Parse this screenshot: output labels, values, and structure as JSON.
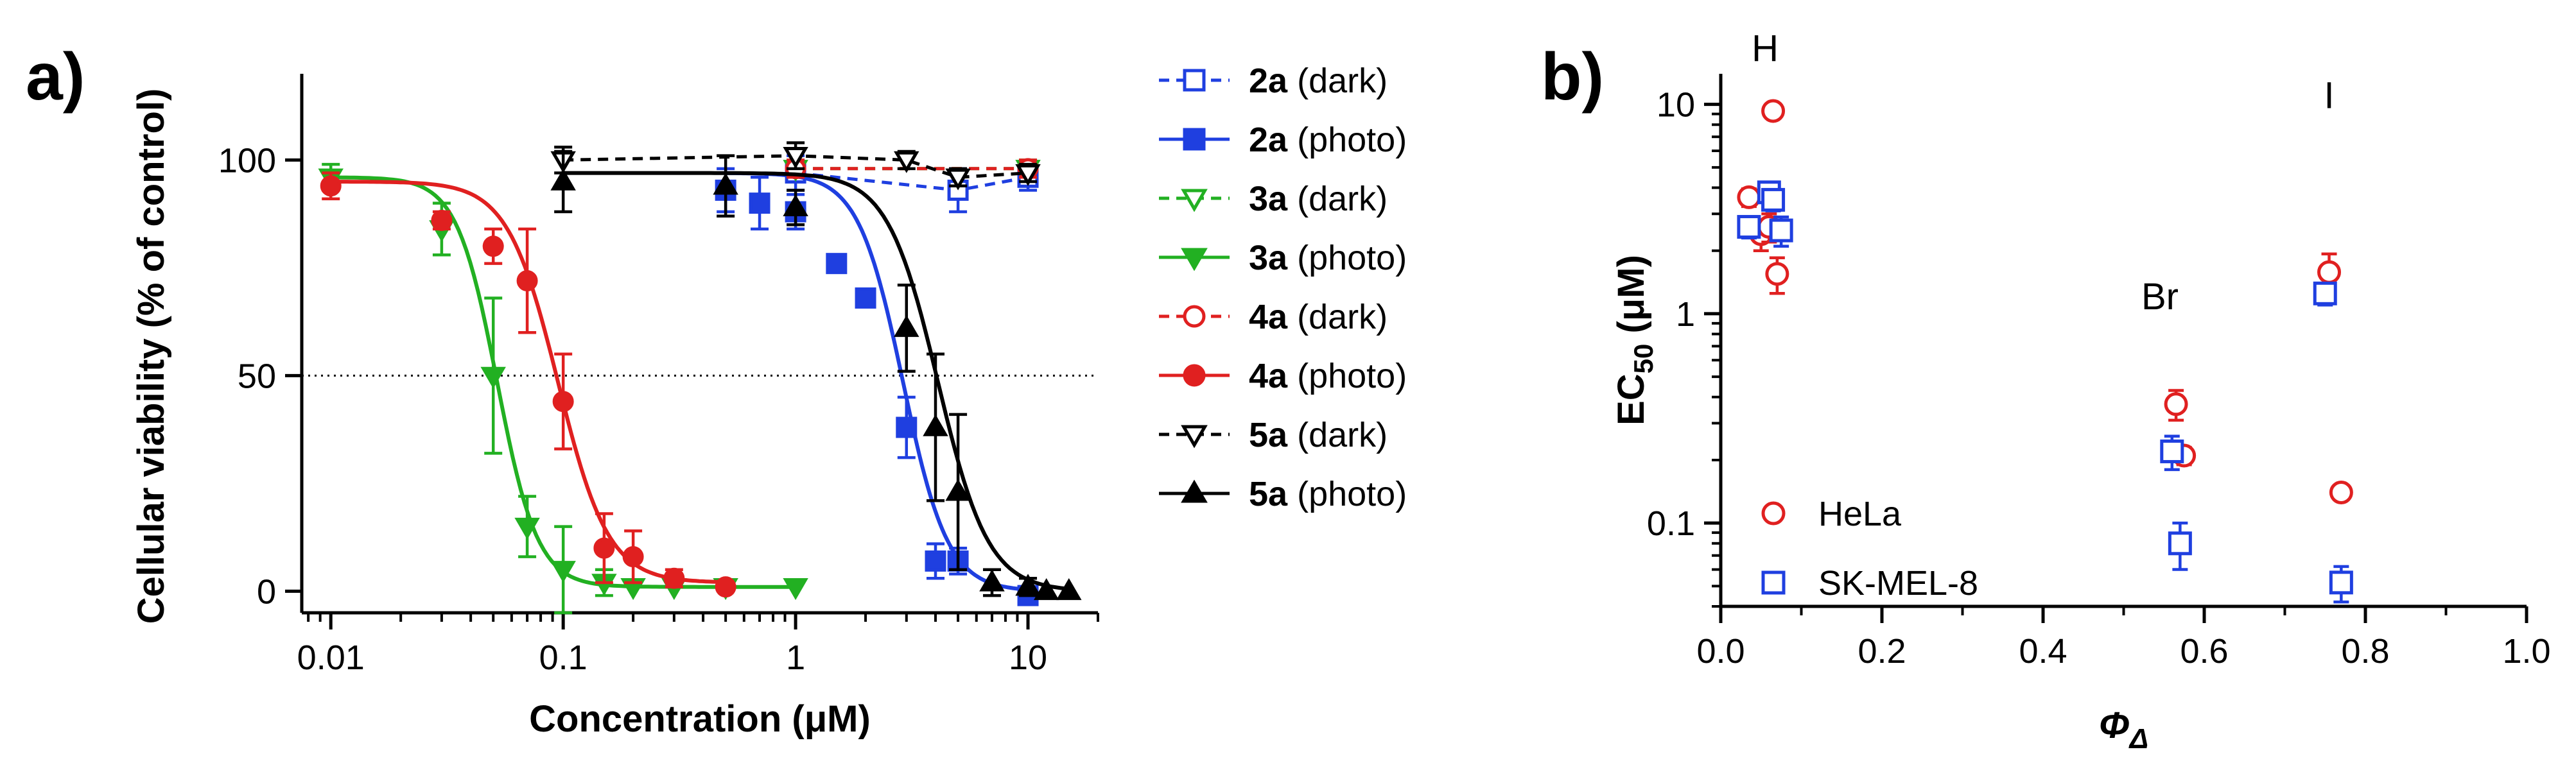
{
  "chart_data": [
    {
      "panel": "a)",
      "type": "scatter",
      "xlabel": "Concentration  (μM)",
      "ylabel": "Cellular viability  (% of control)",
      "xscale": "log",
      "xlim": [
        0.0075,
        20
      ],
      "ylim": [
        -5,
        120
      ],
      "xticks": [
        {
          "v": 0.01,
          "label": "0.01"
        },
        {
          "v": 0.1,
          "label": "0.1"
        },
        {
          "v": 1,
          "label": "1"
        },
        {
          "v": 10,
          "label": "10"
        }
      ],
      "yticks": [
        {
          "v": 0,
          "label": "0"
        },
        {
          "v": 50,
          "label": "50"
        },
        {
          "v": 100,
          "label": "100"
        }
      ],
      "reference_line": {
        "y": 50,
        "style": "dotted"
      },
      "legend_position": "right",
      "series": [
        {
          "name": "2a",
          "suffix": " (dark)",
          "color": "#1f3fe0",
          "marker": "square",
          "filled": false,
          "line": "dashed",
          "x": [
            1,
            5,
            10
          ],
          "y": [
            97,
            93,
            96
          ],
          "err": [
            4,
            5,
            3
          ]
        },
        {
          "name": "2a",
          "suffix": "  (photo)",
          "color": "#1f3fe0",
          "marker": "square",
          "filled": true,
          "line": "solid",
          "fit": {
            "top": 97,
            "bottom": 0,
            "ec50": 2.9,
            "hill": 4.5
          },
          "x": [
            0.5,
            0.7,
            1,
            1.5,
            2,
            3,
            4,
            5,
            10
          ],
          "y": [
            93,
            90,
            88,
            76,
            68,
            38,
            7,
            7,
            -1
          ],
          "err": [
            5,
            6,
            4,
            2,
            2,
            7,
            4,
            3,
            1
          ]
        },
        {
          "name": "3a",
          "suffix": " (dark)",
          "color": "#22b022",
          "marker": "triangle-down",
          "filled": false,
          "line": "dashed",
          "x": [
            1,
            10
          ],
          "y": [
            98,
            98
          ],
          "err": [
            2,
            2
          ]
        },
        {
          "name": "3a",
          "suffix": " (photo)",
          "color": "#22b022",
          "marker": "triangle-down",
          "filled": true,
          "line": "solid",
          "fit": {
            "top": 96,
            "bottom": 1,
            "ec50": 0.052,
            "hill": 5
          },
          "x": [
            0.01,
            0.03,
            0.05,
            0.07,
            0.1,
            0.15,
            0.2,
            0.3,
            0.5,
            1
          ],
          "y": [
            96,
            84,
            50,
            15,
            5,
            2,
            1,
            1,
            1,
            1
          ],
          "err": [
            3,
            6,
            18,
            7,
            10,
            3,
            1,
            1,
            1,
            1
          ]
        },
        {
          "name": "4a",
          "suffix": " (dark)",
          "color": "#e02020",
          "marker": "circle",
          "filled": false,
          "line": "dashed",
          "x": [
            1,
            10
          ],
          "y": [
            98,
            98
          ],
          "err": [
            2,
            2
          ]
        },
        {
          "name": "4a",
          "suffix": " (photo)",
          "color": "#e02020",
          "marker": "circle",
          "filled": true,
          "line": "solid",
          "fit": {
            "top": 95,
            "bottom": 2,
            "ec50": 0.095,
            "hill": 4
          },
          "x": [
            0.01,
            0.03,
            0.05,
            0.07,
            0.1,
            0.15,
            0.2,
            0.3,
            0.5
          ],
          "y": [
            94,
            86,
            80,
            72,
            44,
            10,
            8,
            3,
            1
          ],
          "err": [
            3,
            2,
            4,
            12,
            11,
            8,
            6,
            2,
            1
          ]
        },
        {
          "name": "5a",
          "suffix": " (dark)",
          "color": "#000000",
          "marker": "triangle-down",
          "filled": false,
          "line": "dashed",
          "x": [
            0.1,
            1,
            3,
            5,
            10
          ],
          "y": [
            100,
            101,
            100,
            96,
            97
          ],
          "err": [
            3,
            3,
            2,
            2,
            2
          ]
        },
        {
          "name": "5a",
          "suffix": " (photo)",
          "color": "#000000",
          "marker": "triangle-up",
          "filled": true,
          "line": "solid",
          "fit": {
            "top": 97,
            "bottom": 0,
            "ec50": 4.1,
            "hill": 4
          },
          "x": [
            0.1,
            0.5,
            1,
            3,
            4,
            5,
            7,
            10,
            12,
            15
          ],
          "y": [
            95,
            94,
            89,
            61,
            38,
            23,
            2,
            1,
            0,
            0
          ],
          "err": [
            7,
            7,
            4,
            10,
            17,
            18,
            3,
            2,
            1,
            1
          ]
        }
      ]
    },
    {
      "panel": "b)",
      "type": "scatter",
      "xlabel": "ΦΔ",
      "xlabel_main": "Φ",
      "xlabel_sub": "Δ",
      "ylabel": "EC50 (μM)",
      "ylabel_main": "EC",
      "ylabel_sub": "50",
      "ylabel_rest": " (μM)",
      "yscale": "log",
      "xlim": [
        0,
        1
      ],
      "ylim": [
        0.04,
        14
      ],
      "xticks": [
        {
          "v": 0,
          "label": "0.0"
        },
        {
          "v": 0.2,
          "label": "0.2"
        },
        {
          "v": 0.4,
          "label": "0.4"
        },
        {
          "v": 0.6,
          "label": "0.6"
        },
        {
          "v": 0.8,
          "label": "0.8"
        },
        {
          "v": 1,
          "label": "1.0"
        }
      ],
      "yticks": [
        {
          "v": 0.1,
          "label": "0.1"
        },
        {
          "v": 1,
          "label": "1"
        },
        {
          "v": 10,
          "label": "10"
        }
      ],
      "annotations": [
        {
          "text": "H",
          "x": 0.055,
          "y": 20
        },
        {
          "text": "Br",
          "x": 0.545,
          "y": 1.05
        },
        {
          "text": "I",
          "x": 0.755,
          "y": 9.6
        }
      ],
      "legend_position": "bottom-left",
      "series": [
        {
          "name": "HeLa",
          "color": "#e02020",
          "marker": "circle",
          "x": [
            0.035,
            0.05,
            0.06,
            0.065,
            0.07,
            0.565,
            0.575,
            0.755,
            0.77
          ],
          "y": [
            3.6,
            2.4,
            2.6,
            9.3,
            1.55,
            0.37,
            0.21,
            1.58,
            0.14
          ],
          "err": [
            0.35,
            0.4,
            0.4,
            0.5,
            0.3,
            0.06,
            0.02,
            0.35,
            0.01
          ]
        },
        {
          "name": "SK-MEL-8",
          "color": "#1f3fe0",
          "marker": "square",
          "x": [
            0.035,
            0.06,
            0.065,
            0.075,
            0.56,
            0.57,
            0.75,
            0.77
          ],
          "y": [
            2.6,
            3.8,
            3.5,
            2.5,
            0.22,
            0.08,
            1.25,
            0.052
          ],
          "err": [
            0.3,
            0.3,
            0.4,
            0.4,
            0.04,
            0.02,
            0.15,
            0.01
          ]
        }
      ]
    }
  ]
}
